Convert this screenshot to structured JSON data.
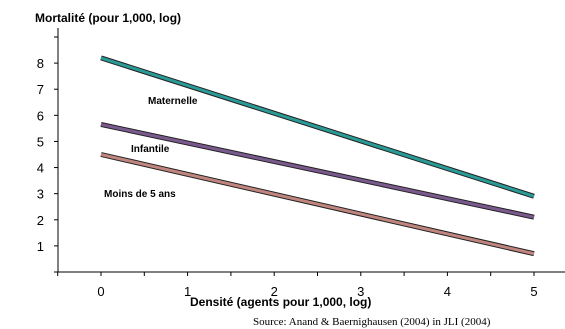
{
  "chart_data": {
    "type": "line",
    "ylabel": "Mortalité (pour 1,000, log)",
    "xlabel": "Densité (agents pour 1,000, log)",
    "source": "Source: Anand & Baernighausen (2004) in JLI (2004)",
    "xlim": [
      -0.5,
      5.3
    ],
    "ylim": [
      0,
      9
    ],
    "x_ticks": [
      "0",
      "1",
      "2",
      "3",
      "4",
      "5"
    ],
    "y_ticks": [
      "1",
      "2",
      "3",
      "4",
      "5",
      "6",
      "7",
      "8"
    ],
    "grid": false,
    "series": [
      {
        "name": "Maternelle",
        "color": "#2a9a96",
        "x": [
          0,
          5
        ],
        "values": [
          8.2,
          2.9
        ]
      },
      {
        "name": "Infantile",
        "color": "#7a5a8e",
        "x": [
          0,
          5
        ],
        "values": [
          5.65,
          2.1
        ]
      },
      {
        "name": "Moins de 5 ans",
        "color": "#c0857e",
        "x": [
          0,
          5
        ],
        "values": [
          4.5,
          0.7
        ]
      }
    ]
  }
}
